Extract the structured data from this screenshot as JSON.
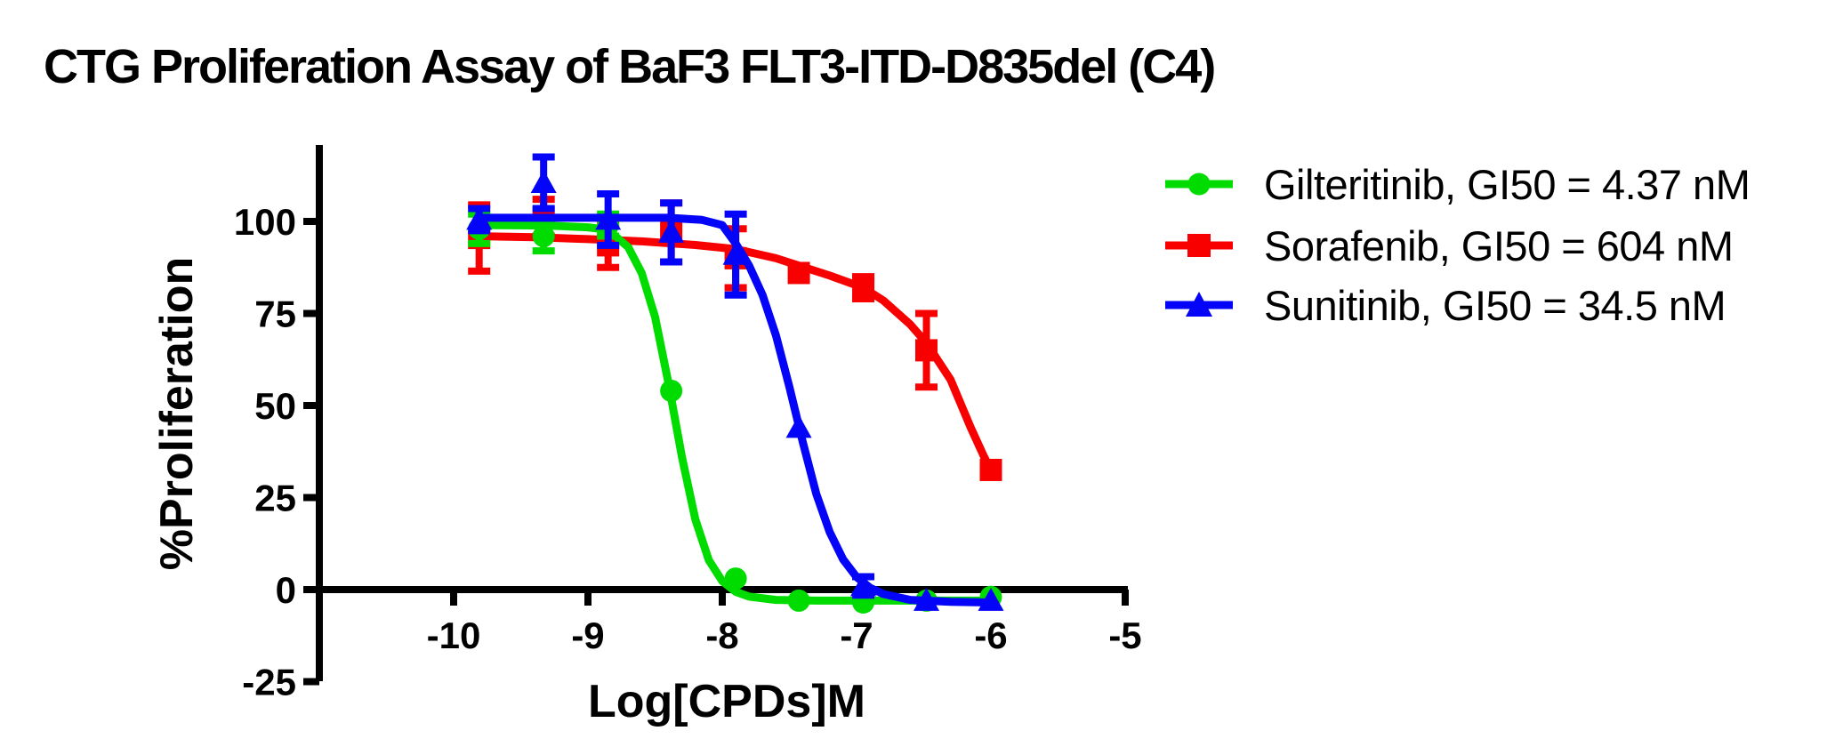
{
  "header": {
    "title": "CTG Proliferation Assay of BaF3 FLT3-ITD-D835del (C4)"
  },
  "chart_data": {
    "type": "scatter",
    "title": "CTG Proliferation Assay of BaF3 FLT3-ITD-D835del (C4)",
    "xlabel": "Log[CPDs]M",
    "ylabel": "%Proliferation",
    "x_ticks": [
      -10,
      -9,
      -8,
      -7,
      -6,
      -5
    ],
    "y_ticks": [
      100,
      75,
      50,
      25,
      0,
      -25
    ],
    "xlim": [
      -11,
      -5
    ],
    "ylim": [
      -25,
      121
    ],
    "grid": false,
    "legend_position": "right",
    "axis_color": "#000000",
    "series": [
      {
        "name": "Gilteritinib",
        "label": "Gilteritinib, GI50 = 4.37 nM",
        "gi50": "4.37 nM",
        "color": "#00dc00",
        "marker": "circle",
        "z": 2,
        "x": [
          -9.81,
          -9.33,
          -8.85,
          -8.38,
          -7.9,
          -7.43,
          -6.95,
          -6.48,
          -6.0
        ],
        "y": [
          98,
          96,
          99,
          54,
          3,
          -3,
          -3.5,
          -3,
          -2
        ],
        "err": [
          4,
          4,
          3,
          2,
          1.5,
          1,
          1,
          1,
          1
        ],
        "curve": [
          [
            -9.81,
            99
          ],
          [
            -9.3,
            98.9
          ],
          [
            -9.0,
            98.4
          ],
          [
            -8.85,
            97.7
          ],
          [
            -8.7,
            93
          ],
          [
            -8.6,
            86
          ],
          [
            -8.5,
            74
          ],
          [
            -8.4,
            56
          ],
          [
            -8.3,
            36
          ],
          [
            -8.2,
            19
          ],
          [
            -8.1,
            8
          ],
          [
            -8.0,
            2.3
          ],
          [
            -7.9,
            -0.6
          ],
          [
            -7.8,
            -1.9
          ],
          [
            -7.6,
            -2.8
          ],
          [
            -7.3,
            -3
          ],
          [
            -7.0,
            -3
          ],
          [
            -6.5,
            -3
          ],
          [
            -6.0,
            -3
          ]
        ]
      },
      {
        "name": "Sorafenib",
        "label": "Sorafenib, GI50 = 604 nM",
        "gi50": "604 nM",
        "color": "#f80000",
        "marker": "square",
        "z": 1,
        "x": [
          -9.81,
          -9.33,
          -8.85,
          -8.38,
          -7.9,
          -7.43,
          -6.95,
          -6.48,
          -6.0
        ],
        "y": [
          95.5,
          101,
          93.5,
          97,
          90,
          86,
          82,
          65,
          32.5
        ],
        "err": [
          9,
          5,
          6,
          8,
          8,
          2,
          3,
          10,
          2
        ],
        "curve": [
          [
            -9.81,
            96
          ],
          [
            -9.4,
            95.7
          ],
          [
            -9.0,
            95.2
          ],
          [
            -8.6,
            94.6
          ],
          [
            -8.2,
            93.6
          ],
          [
            -7.9,
            92.5
          ],
          [
            -7.6,
            90
          ],
          [
            -7.43,
            88
          ],
          [
            -7.2,
            85.3
          ],
          [
            -6.95,
            82
          ],
          [
            -6.8,
            78.5
          ],
          [
            -6.6,
            72
          ],
          [
            -6.48,
            67
          ],
          [
            -6.3,
            57
          ],
          [
            -6.15,
            44
          ],
          [
            -6.05,
            36
          ],
          [
            -6.0,
            32.5
          ]
        ]
      },
      {
        "name": "Sunitinib",
        "label": "Sunitinib, GI50 = 34.5 nM",
        "gi50": "34.5 nM",
        "color": "#0404f8",
        "marker": "triangle",
        "z": 3,
        "x": [
          -9.81,
          -9.33,
          -8.85,
          -8.38,
          -7.9,
          -7.43,
          -6.95,
          -6.48,
          -6.0
        ],
        "y": [
          100.5,
          110.5,
          100.5,
          97,
          91,
          44,
          1,
          -3,
          -3
        ],
        "err": [
          3,
          7,
          7,
          8,
          11,
          2,
          2.5,
          2,
          2
        ],
        "curve": [
          [
            -9.81,
            101
          ],
          [
            -8.8,
            101
          ],
          [
            -8.4,
            101
          ],
          [
            -8.15,
            100.4
          ],
          [
            -8.0,
            99
          ],
          [
            -7.9,
            94
          ],
          [
            -7.8,
            88
          ],
          [
            -7.7,
            80
          ],
          [
            -7.6,
            69
          ],
          [
            -7.5,
            55
          ],
          [
            -7.4,
            40
          ],
          [
            -7.3,
            26
          ],
          [
            -7.2,
            15.6
          ],
          [
            -7.1,
            8.2
          ],
          [
            -7.0,
            3.4
          ],
          [
            -6.9,
            0.5
          ],
          [
            -6.8,
            -1.2
          ],
          [
            -6.6,
            -2.8
          ],
          [
            -6.3,
            -3.3
          ],
          [
            -6.0,
            -3.5
          ]
        ]
      }
    ]
  }
}
